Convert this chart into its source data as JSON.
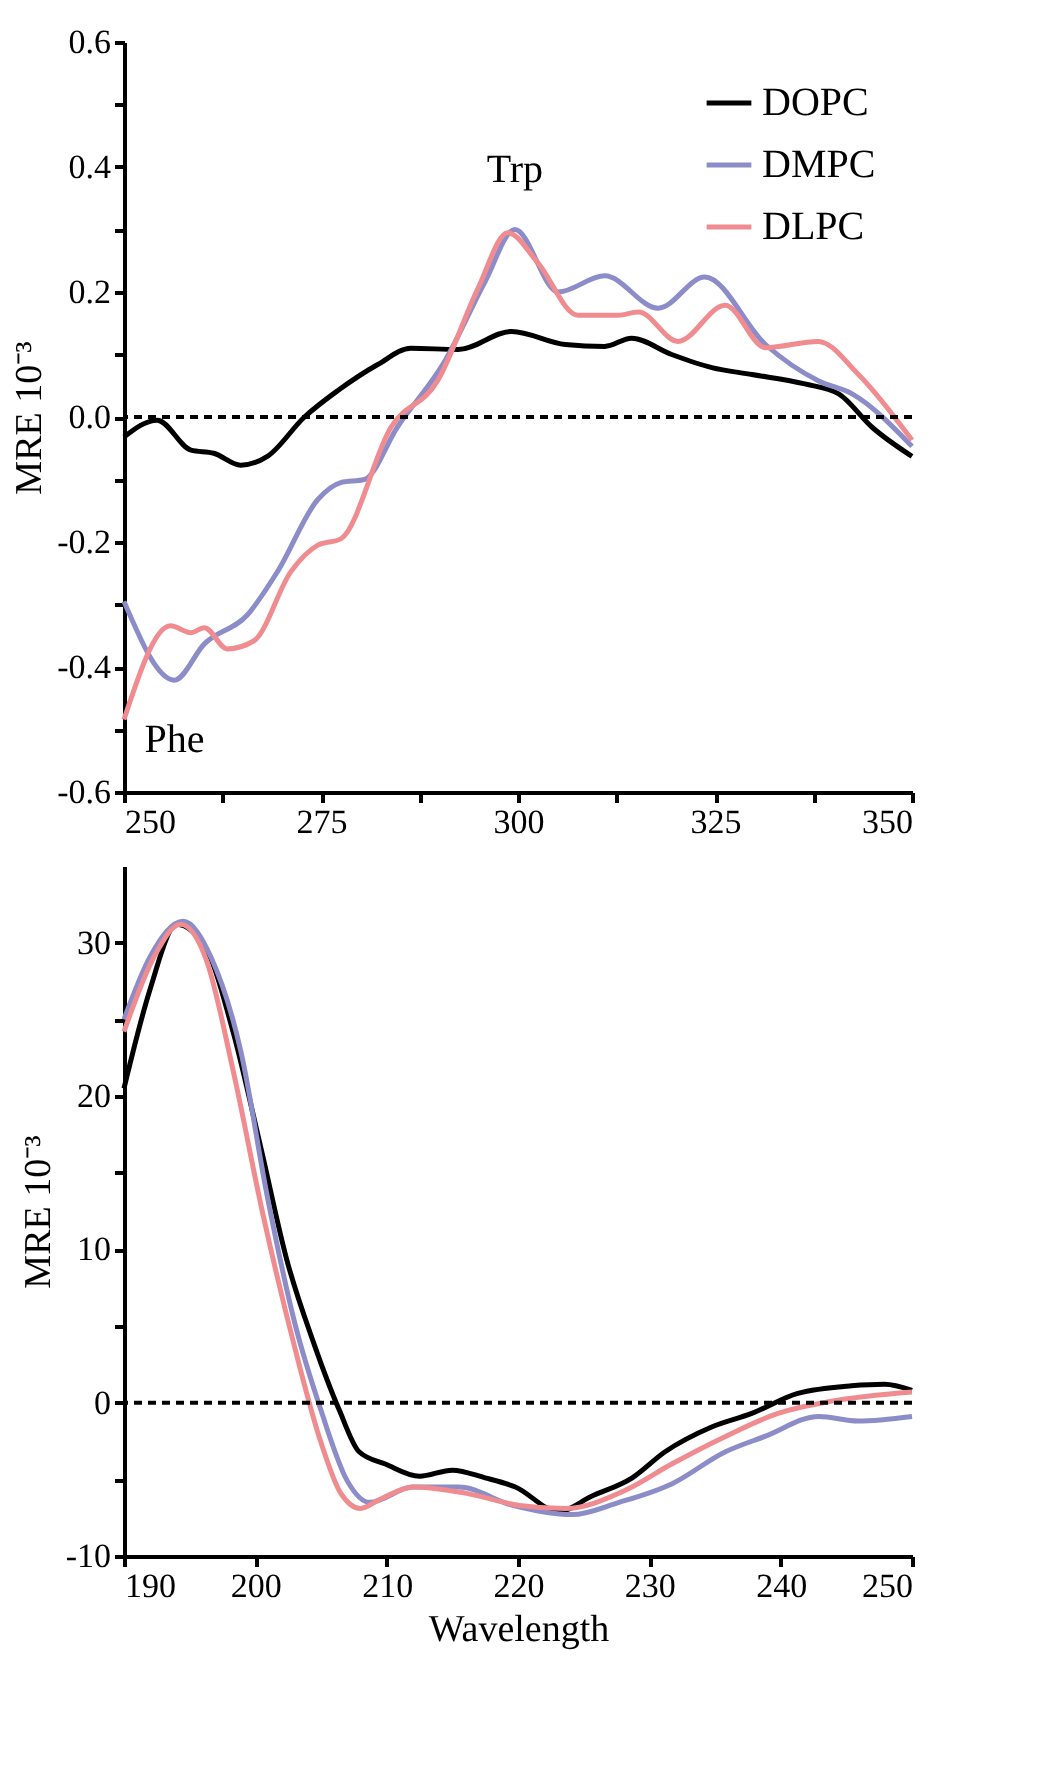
{
  "chart_data": [
    {
      "type": "line",
      "ylabel": "MRE 10⁻³",
      "xlim": [
        250,
        350
      ],
      "ylim": [
        -0.6,
        0.6
      ],
      "xticks": [
        250,
        {
          "value": 262.5,
          "label": null
        },
        275,
        {
          "value": 287.5,
          "label": null
        },
        300,
        {
          "value": 312.5,
          "label": null
        },
        325,
        {
          "value": 337.5,
          "label": null
        },
        350
      ],
      "yticks": [
        -0.6,
        {
          "value": -0.5,
          "label": null
        },
        -0.4,
        {
          "value": -0.3,
          "label": null
        },
        -0.2,
        {
          "value": -0.1,
          "label": null
        },
        {
          "value": 0,
          "label": "0.0"
        },
        {
          "value": 0.1,
          "label": null
        },
        0.2,
        {
          "value": 0.3,
          "label": null
        },
        0.4,
        {
          "value": 0.5,
          "label": null
        },
        0.6
      ],
      "grid": false,
      "legend": "top right",
      "line_style": "solid",
      "marker": "none",
      "ref_lines": [
        {
          "axis": "y",
          "value": 0,
          "line_style": "dashed",
          "color": "#000000"
        }
      ],
      "annotations": [
        {
          "text": "Trp",
          "x": 299.6,
          "y": 0.3
        },
        {
          "text": "Phe",
          "x": 256.4,
          "y": -0.421
        }
      ],
      "series": [
        {
          "name": "DOPC",
          "color": "#000000",
          "x": [
            250,
            254.2,
            258.5,
            261.4,
            264.8,
            268.2,
            272.9,
            277.1,
            282.2,
            286.4,
            292.4,
            299.2,
            306,
            311,
            314.4,
            319.5,
            324.6,
            329.7,
            336.4,
            340.7,
            344.9,
            350
          ],
          "values": [
            -0.032,
            -0.005,
            -0.053,
            -0.058,
            -0.077,
            -0.063,
            0.0,
            0.042,
            0.084,
            0.11,
            0.108,
            0.137,
            0.116,
            0.113,
            0.126,
            0.1,
            0.079,
            0.068,
            0.053,
            0.037,
            -0.016,
            -0.063
          ]
        },
        {
          "name": "DMPC",
          "color": "#8c8cc8",
          "x": [
            250,
            256.4,
            260.2,
            265.7,
            269.5,
            274.6,
            277.5,
            280.5,
            284.7,
            290.7,
            295.8,
            299.6,
            305.1,
            311,
            317.8,
            323.7,
            331.4,
            338.1,
            342.4,
            350
          ],
          "values": [
            -0.295,
            -0.421,
            -0.363,
            -0.316,
            -0.247,
            -0.132,
            -0.105,
            -0.1,
            -0.016,
            0.089,
            0.216,
            0.3,
            0.2,
            0.226,
            0.174,
            0.224,
            0.116,
            0.058,
            0.037,
            -0.047
          ]
        },
        {
          "name": "DLPC",
          "color": "#f08c90",
          "x": [
            250,
            255.9,
            258.5,
            260.2,
            263.1,
            266.5,
            271.2,
            274.6,
            277.5,
            283.9,
            289.8,
            294.9,
            298.7,
            302.5,
            307.6,
            312.7,
            315.3,
            320.3,
            326.3,
            331.4,
            338.1,
            343.2,
            350
          ],
          "values": [
            -0.484,
            -0.334,
            -0.345,
            -0.337,
            -0.371,
            -0.358,
            -0.247,
            -0.205,
            -0.195,
            -0.016,
            0.058,
            0.205,
            0.295,
            0.247,
            0.163,
            0.163,
            0.168,
            0.121,
            0.179,
            0.111,
            0.121,
            0.068,
            -0.037
          ]
        }
      ]
    },
    {
      "type": "line",
      "xlabel": "Wavelength",
      "ylabel": "MRE 10⁻³",
      "xlim": [
        190,
        250
      ],
      "ylim": [
        -10,
        35
      ],
      "xticks": [
        190,
        200,
        210,
        220,
        230,
        240,
        250
      ],
      "yticks": [
        -10,
        {
          "value": -5,
          "label": null
        },
        0,
        {
          "value": 5,
          "label": null
        },
        10,
        {
          "value": 15,
          "label": null
        },
        20,
        {
          "value": 25,
          "label": null
        },
        30
      ],
      "grid": false,
      "legend": "top right",
      "line_style": "solid",
      "marker": "none",
      "ref_lines": [
        {
          "axis": "y",
          "value": 0,
          "line_style": "dashed",
          "color": "#000000"
        }
      ],
      "series": [
        {
          "name": "DOPC",
          "color": "#000000",
          "x": [
            190,
            192,
            194,
            196.3,
            198.3,
            200.4,
            202.4,
            204.4,
            206.4,
            207.9,
            209.9,
            212.5,
            215,
            217.5,
            219.8,
            223.1,
            225.6,
            228.7,
            231.2,
            234.7,
            237.8,
            241.3,
            245.4,
            247.9,
            250
          ],
          "values": [
            20.5,
            27,
            31.2,
            29.5,
            24.2,
            16.7,
            9.3,
            4.0,
            -0.5,
            -3.2,
            -4.0,
            -4.8,
            -4.4,
            -4.9,
            -5.5,
            -7.1,
            -6.1,
            -4.9,
            -3.2,
            -1.6,
            -0.7,
            0.6,
            1.1,
            1.2,
            0.8
          ]
        },
        {
          "name": "DMPC",
          "color": "#8c8cc8",
          "x": [
            190,
            192,
            194.5,
            196.6,
            198.9,
            200.9,
            203,
            205,
            207,
            208.7,
            212,
            215.5,
            219.6,
            224.1,
            227.7,
            231.7,
            235.8,
            238.8,
            242.9,
            245.9,
            250
          ],
          "values": [
            25,
            29.1,
            31.4,
            29.1,
            22.9,
            13.5,
            5.2,
            -0.5,
            -5.1,
            -6.5,
            -5.5,
            -5.5,
            -6.7,
            -7.3,
            -6.5,
            -5.3,
            -3.2,
            -2.2,
            -0.9,
            -1.2,
            -0.9
          ]
        },
        {
          "name": "DLPC",
          "color": "#f08c90",
          "x": [
            190,
            192.3,
            194.3,
            196.3,
            198.3,
            200.6,
            203,
            205,
            206.5,
            208,
            209.5,
            212,
            216,
            220.1,
            223.6,
            228.2,
            231.7,
            235.8,
            239.8,
            243.9,
            250
          ],
          "values": [
            24.2,
            29.1,
            31.2,
            28.8,
            21.7,
            12.2,
            3.6,
            -2.6,
            -5.9,
            -6.9,
            -6.3,
            -5.5,
            -5.9,
            -6.7,
            -6.9,
            -5.7,
            -4.0,
            -2.2,
            -0.7,
            0.1,
            0.7
          ]
        }
      ]
    }
  ]
}
